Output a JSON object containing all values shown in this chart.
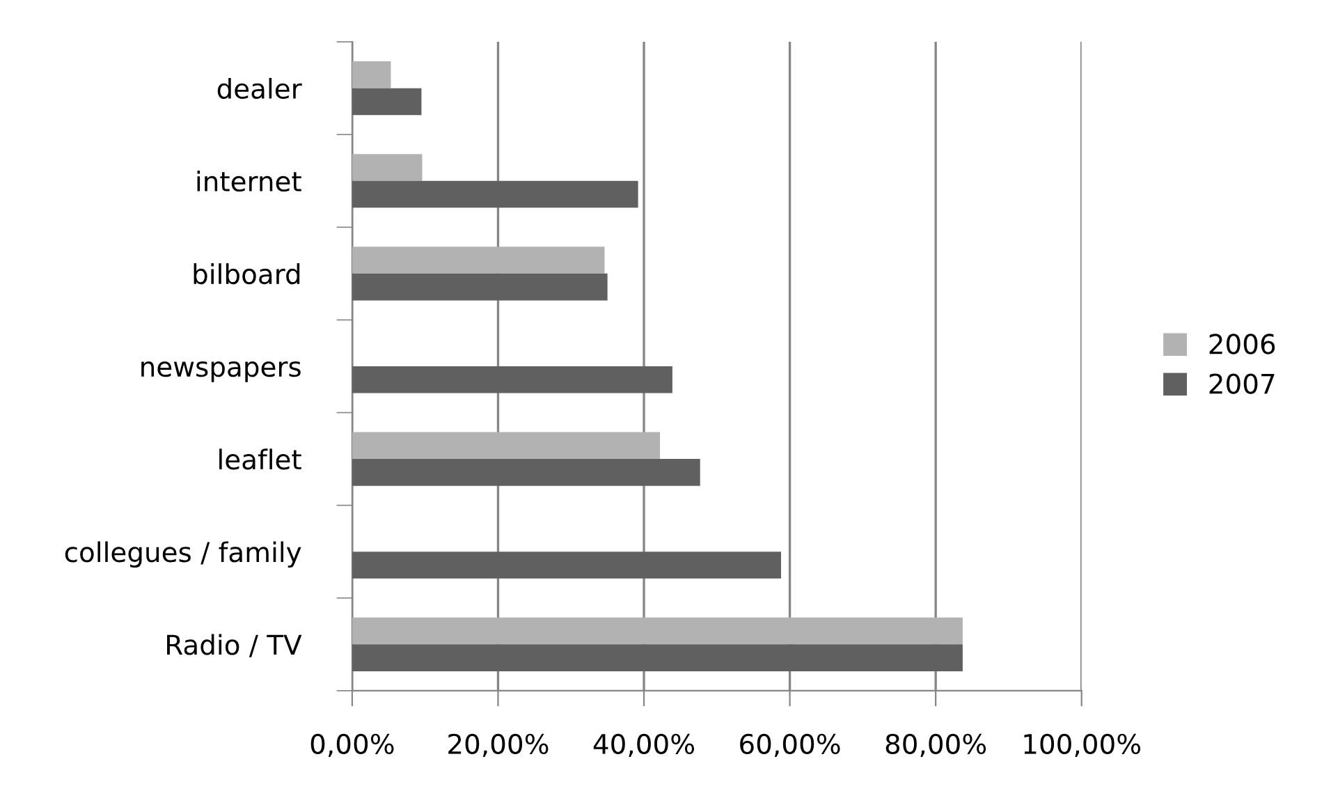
{
  "chart_data": {
    "type": "bar",
    "orientation": "horizontal",
    "categories": [
      "dealer",
      "internet",
      "bilboard",
      "newspapers",
      "leaflet",
      "collegues / family",
      "Radio / TV"
    ],
    "series": [
      {
        "name": "2006",
        "color": "#b2b2b2",
        "values": [
          5.3,
          9.6,
          34.6,
          null,
          42.2,
          null,
          83.7
        ]
      },
      {
        "name": "2007",
        "color": "#606060",
        "values": [
          9.5,
          39.2,
          35.0,
          43.9,
          47.7,
          58.8,
          83.7
        ]
      }
    ],
    "xlim": [
      0,
      100
    ],
    "xticks": [
      {
        "value": 0,
        "label": "0,00%"
      },
      {
        "value": 20,
        "label": "20,00%"
      },
      {
        "value": 40,
        "label": "40,00%"
      },
      {
        "value": 60,
        "label": "60,00%"
      },
      {
        "value": 80,
        "label": "80,00%"
      },
      {
        "value": 100,
        "label": "100,00%"
      }
    ],
    "grid": "x",
    "legend": "right"
  }
}
